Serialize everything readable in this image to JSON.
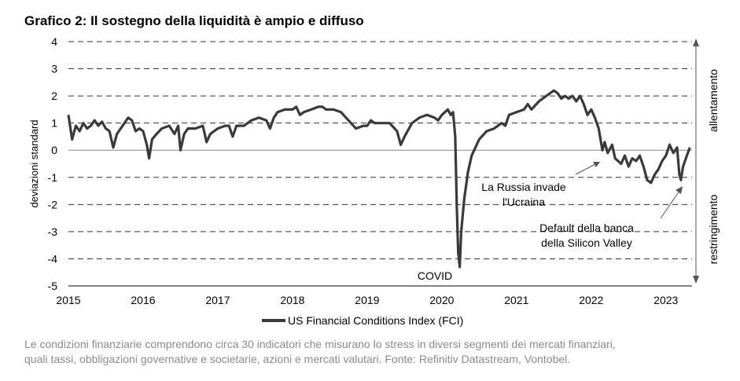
{
  "title": "Grafico 2: Il sostegno della liquidità è ampio e diffuso",
  "caption": {
    "line1": "Le condizioni finanziarie comprendono circa 30 indicatori che misurano lo stress in diversi segmenti dei mercati finanziari,",
    "line2": "quali tassi, obbligazioni governative e societarie, azioni e mercati valutari. Fonte: Refinitiv Datastream, Vontobel."
  },
  "chart_data": {
    "type": "line",
    "ylabel": "deviazioni standard",
    "ylim": [
      -5,
      4
    ],
    "yticks": [
      "4",
      "3",
      "2",
      "1",
      "0",
      "-1",
      "-2",
      "-3",
      "-4",
      "-5"
    ],
    "xlim": [
      2015.0,
      2023.35
    ],
    "xticks": [
      "2015",
      "2016",
      "2017",
      "2018",
      "2019",
      "2020",
      "2021",
      "2022",
      "2023"
    ],
    "grid": "dashed horizontal",
    "legend": {
      "position": "bottom",
      "label": "US Financial Conditions Index (FCI)"
    },
    "side_labels": {
      "upper": "allentamento",
      "lower": "restringimento"
    },
    "annotations": {
      "covid": "COVID",
      "russia_line1": "La Russia invade",
      "russia_line2": "l'Ucraina",
      "svb_line1": "Default della banca",
      "svb_line2": "della Silicon Valley"
    },
    "series": [
      {
        "name": "US Financial Conditions Index (FCI)",
        "color": "#3a3a3a",
        "points": [
          [
            2015.0,
            1.3
          ],
          [
            2015.05,
            0.4
          ],
          [
            2015.1,
            0.9
          ],
          [
            2015.15,
            0.7
          ],
          [
            2015.2,
            1.0
          ],
          [
            2015.25,
            0.8
          ],
          [
            2015.3,
            0.9
          ],
          [
            2015.35,
            1.1
          ],
          [
            2015.4,
            0.9
          ],
          [
            2015.45,
            1.05
          ],
          [
            2015.5,
            0.8
          ],
          [
            2015.55,
            0.7
          ],
          [
            2015.6,
            0.1
          ],
          [
            2015.65,
            0.6
          ],
          [
            2015.7,
            0.8
          ],
          [
            2015.75,
            1.0
          ],
          [
            2015.8,
            1.2
          ],
          [
            2015.85,
            1.1
          ],
          [
            2015.9,
            0.7
          ],
          [
            2015.95,
            0.8
          ],
          [
            2016.0,
            0.7
          ],
          [
            2016.05,
            0.2
          ],
          [
            2016.08,
            -0.3
          ],
          [
            2016.12,
            0.4
          ],
          [
            2016.18,
            0.6
          ],
          [
            2016.25,
            0.8
          ],
          [
            2016.35,
            0.9
          ],
          [
            2016.42,
            0.6
          ],
          [
            2016.47,
            0.9
          ],
          [
            2016.5,
            0.0
          ],
          [
            2016.55,
            0.6
          ],
          [
            2016.6,
            0.8
          ],
          [
            2016.7,
            0.8
          ],
          [
            2016.8,
            0.9
          ],
          [
            2016.85,
            0.3
          ],
          [
            2016.9,
            0.6
          ],
          [
            2017.0,
            0.8
          ],
          [
            2017.1,
            0.9
          ],
          [
            2017.15,
            0.9
          ],
          [
            2017.2,
            0.5
          ],
          [
            2017.25,
            0.9
          ],
          [
            2017.35,
            0.9
          ],
          [
            2017.45,
            1.1
          ],
          [
            2017.55,
            1.2
          ],
          [
            2017.65,
            1.1
          ],
          [
            2017.7,
            0.8
          ],
          [
            2017.75,
            1.2
          ],
          [
            2017.8,
            1.4
          ],
          [
            2017.9,
            1.5
          ],
          [
            2018.0,
            1.5
          ],
          [
            2018.05,
            1.6
          ],
          [
            2018.1,
            1.3
          ],
          [
            2018.15,
            1.4
          ],
          [
            2018.25,
            1.5
          ],
          [
            2018.35,
            1.6
          ],
          [
            2018.4,
            1.6
          ],
          [
            2018.45,
            1.5
          ],
          [
            2018.55,
            1.5
          ],
          [
            2018.65,
            1.4
          ],
          [
            2018.75,
            1.1
          ],
          [
            2018.85,
            0.8
          ],
          [
            2018.95,
            0.9
          ],
          [
            2019.0,
            0.9
          ],
          [
            2019.05,
            1.1
          ],
          [
            2019.1,
            1.0
          ],
          [
            2019.2,
            1.0
          ],
          [
            2019.3,
            1.0
          ],
          [
            2019.4,
            0.7
          ],
          [
            2019.45,
            0.2
          ],
          [
            2019.5,
            0.5
          ],
          [
            2019.6,
            1.0
          ],
          [
            2019.7,
            1.2
          ],
          [
            2019.8,
            1.3
          ],
          [
            2019.9,
            1.2
          ],
          [
            2019.95,
            1.1
          ],
          [
            2020.0,
            1.3
          ],
          [
            2020.08,
            1.5
          ],
          [
            2020.12,
            1.3
          ],
          [
            2020.15,
            1.4
          ],
          [
            2020.18,
            0.5
          ],
          [
            2020.2,
            -2.0
          ],
          [
            2020.22,
            -3.8
          ],
          [
            2020.24,
            -4.3
          ],
          [
            2020.26,
            -3.0
          ],
          [
            2020.3,
            -1.8
          ],
          [
            2020.35,
            -0.8
          ],
          [
            2020.4,
            -0.2
          ],
          [
            2020.5,
            0.4
          ],
          [
            2020.6,
            0.7
          ],
          [
            2020.7,
            0.8
          ],
          [
            2020.8,
            1.0
          ],
          [
            2020.85,
            0.9
          ],
          [
            2020.9,
            1.3
          ],
          [
            2021.0,
            1.4
          ],
          [
            2021.1,
            1.5
          ],
          [
            2021.15,
            1.7
          ],
          [
            2021.2,
            1.5
          ],
          [
            2021.3,
            1.8
          ],
          [
            2021.4,
            2.0
          ],
          [
            2021.5,
            2.2
          ],
          [
            2021.55,
            2.1
          ],
          [
            2021.6,
            1.9
          ],
          [
            2021.65,
            2.0
          ],
          [
            2021.7,
            1.9
          ],
          [
            2021.75,
            2.0
          ],
          [
            2021.8,
            1.8
          ],
          [
            2021.85,
            2.0
          ],
          [
            2021.9,
            1.7
          ],
          [
            2021.95,
            1.3
          ],
          [
            2022.0,
            1.5
          ],
          [
            2022.05,
            1.2
          ],
          [
            2022.1,
            0.8
          ],
          [
            2022.15,
            0.0
          ],
          [
            2022.18,
            0.3
          ],
          [
            2022.22,
            -0.1
          ],
          [
            2022.28,
            0.2
          ],
          [
            2022.32,
            -0.3
          ],
          [
            2022.4,
            -0.5
          ],
          [
            2022.45,
            -0.2
          ],
          [
            2022.5,
            -0.6
          ],
          [
            2022.55,
            -0.3
          ],
          [
            2022.6,
            -0.4
          ],
          [
            2022.65,
            -0.2
          ],
          [
            2022.7,
            -0.6
          ],
          [
            2022.75,
            -1.1
          ],
          [
            2022.8,
            -1.2
          ],
          [
            2022.85,
            -0.9
          ],
          [
            2022.9,
            -0.7
          ],
          [
            2022.95,
            -0.4
          ],
          [
            2023.0,
            -0.2
          ],
          [
            2023.05,
            0.2
          ],
          [
            2023.1,
            -0.1
          ],
          [
            2023.15,
            0.1
          ],
          [
            2023.18,
            -0.9
          ],
          [
            2023.2,
            -1.1
          ],
          [
            2023.23,
            -0.6
          ],
          [
            2023.28,
            -0.2
          ],
          [
            2023.32,
            0.1
          ]
        ]
      }
    ]
  }
}
